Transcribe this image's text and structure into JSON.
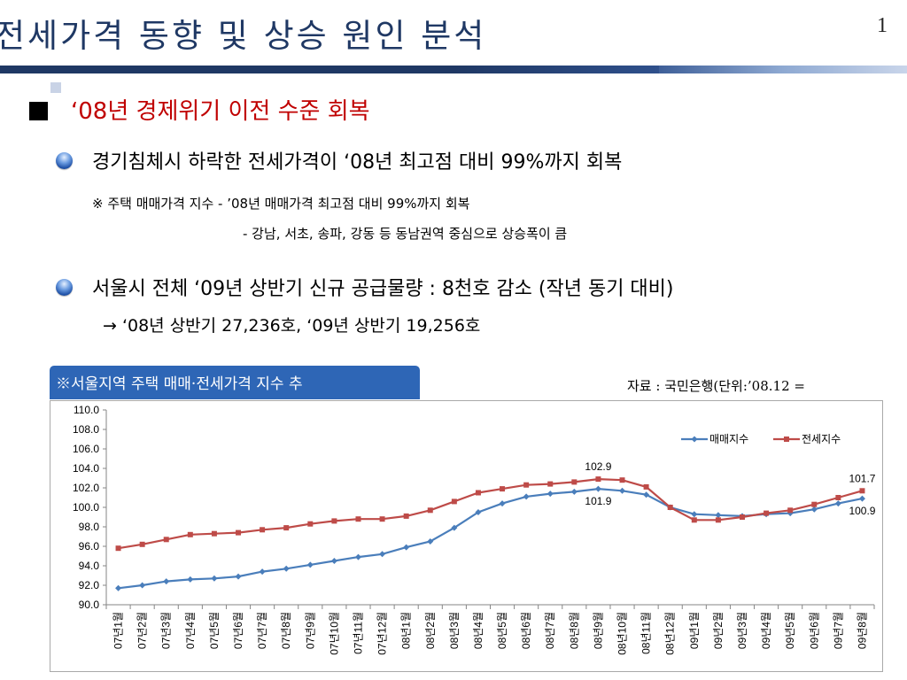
{
  "slide": {
    "title": "전세가격 동향 및 상승 원인 분석",
    "page_number": "1",
    "heading": "‘08년 경제위기 이전 수준 회복",
    "point1": "경기침체시 하락한  전세가격이 ‘08년 최고점 대비 99%까지 회복",
    "note1": "※ 주택 매매가격 지수  -  ’08년 매매가격 최고점 대비 99%까지 회복",
    "note2": "-  강남, 서초, 송파, 강동 등 동남권역 중심으로 상승폭이 큼",
    "point2": "서울시 전체 ‘09년 상반기 신규 공급물량 : 8천호 감소 (작년 동기 대비)",
    "arrow_line": "→ ‘08년 상반기 27,236호, ‘09년 상반기 19,256호",
    "chart_tab": "※서울지역 주택 매매·전세가격 지수 추",
    "source": "자료 : 국민은행(단위:’08.12 ="
  },
  "chart_data": {
    "type": "line",
    "categories": [
      "07년1월",
      "07년2월",
      "07년3월",
      "07년4월",
      "07년5월",
      "07년6월",
      "07년7월",
      "07년8월",
      "07년9월",
      "07년10월",
      "07년11월",
      "07년12월",
      "08년1월",
      "08년2월",
      "08년3월",
      "08년4월",
      "08년5월",
      "08년6월",
      "08년7월",
      "08년8월",
      "08년9월",
      "08년10월",
      "08년11월",
      "08년12월",
      "09년1월",
      "09년2월",
      "09년3월",
      "09년4월",
      "09년5월",
      "09년6월",
      "09년7월",
      "09년8월"
    ],
    "series": [
      {
        "name": "매매지수",
        "color": "#4a7ebb",
        "marker": "diamond",
        "values": [
          91.7,
          92.0,
          92.4,
          92.6,
          92.7,
          92.9,
          93.4,
          93.7,
          94.1,
          94.5,
          94.9,
          95.2,
          95.9,
          96.5,
          97.9,
          99.5,
          100.4,
          101.1,
          101.4,
          101.6,
          101.9,
          101.7,
          101.3,
          100.0,
          99.3,
          99.2,
          99.1,
          99.3,
          99.4,
          99.8,
          100.4,
          100.9
        ]
      },
      {
        "name": "전세지수",
        "color": "#be4b48",
        "marker": "square",
        "values": [
          95.8,
          96.2,
          96.7,
          97.2,
          97.3,
          97.4,
          97.7,
          97.9,
          98.3,
          98.6,
          98.8,
          98.8,
          99.1,
          99.7,
          100.6,
          101.5,
          101.9,
          102.3,
          102.4,
          102.6,
          102.9,
          102.8,
          102.1,
          100.0,
          98.7,
          98.7,
          99.0,
          99.4,
          99.7,
          100.3,
          101.0,
          101.7
        ]
      }
    ],
    "ylim": [
      90.0,
      110.0
    ],
    "yticks": [
      "110.0",
      "108.0",
      "106.0",
      "104.0",
      "102.0",
      "100.0",
      "98.0",
      "96.0",
      "94.0",
      "92.0",
      "90.0"
    ],
    "grid": false,
    "legend_position": "top-right",
    "annotations": [
      {
        "text": "102.9",
        "series": "전세지수",
        "category": "08년9월",
        "placement": "above"
      },
      {
        "text": "101.9",
        "series": "매매지수",
        "category": "08년9월",
        "placement": "below"
      },
      {
        "text": "101.7",
        "series": "전세지수",
        "category": "09년8월",
        "placement": "above"
      },
      {
        "text": "100.9",
        "series": "매매지수",
        "category": "09년8월",
        "placement": "below"
      }
    ]
  }
}
